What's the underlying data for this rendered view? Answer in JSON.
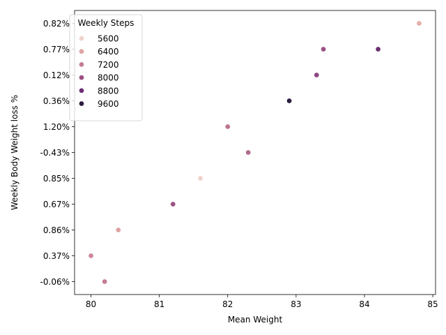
{
  "chart_data": {
    "type": "scatter",
    "xlabel": "Mean Weight",
    "ylabel": "Weekly Body Weight loss %",
    "x_ticks": [
      80,
      81,
      82,
      83,
      84,
      85
    ],
    "xlim": [
      79.76,
      85.04
    ],
    "y_categories": [
      "-0.06%",
      "0.37%",
      "0.86%",
      "0.67%",
      "0.85%",
      "-0.43%",
      "1.20%",
      "0.36%",
      "0.12%",
      "0.77%",
      "0.82%"
    ],
    "legend": {
      "title": "Weekly Steps",
      "placement": "top-left",
      "entries": [
        {
          "label": "5600",
          "color": "#f0d2cb"
        },
        {
          "label": "6400",
          "color": "#dea3a2"
        },
        {
          "label": "7200",
          "color": "#c47c91"
        },
        {
          "label": "8000",
          "color": "#9c5083"
        },
        {
          "label": "8800",
          "color": "#6c2f72"
        },
        {
          "label": "9600",
          "color": "#2c1c40"
        }
      ]
    },
    "points": [
      {
        "x": 80.2,
        "y": "-0.06%",
        "color": "#c47c91"
      },
      {
        "x": 80.0,
        "y": "0.37%",
        "color": "#cd8698"
      },
      {
        "x": 80.4,
        "y": "0.86%",
        "color": "#dea3a2"
      },
      {
        "x": 81.2,
        "y": "0.67%",
        "color": "#9c5083"
      },
      {
        "x": 81.6,
        "y": "0.85%",
        "color": "#f0d2cb"
      },
      {
        "x": 82.3,
        "y": "-0.43%",
        "color": "#b16b8d"
      },
      {
        "x": 82.0,
        "y": "1.20%",
        "color": "#bc738f"
      },
      {
        "x": 82.9,
        "y": "0.36%",
        "color": "#2c1c40"
      },
      {
        "x": 83.3,
        "y": "0.12%",
        "color": "#8d4580"
      },
      {
        "x": 83.4,
        "y": "0.77%",
        "color": "#9c5083"
      },
      {
        "x": 84.2,
        "y": "0.77%",
        "color": "#6c2f72"
      },
      {
        "x": 84.8,
        "y": "0.82%",
        "color": "#e3b0a9"
      }
    ]
  }
}
